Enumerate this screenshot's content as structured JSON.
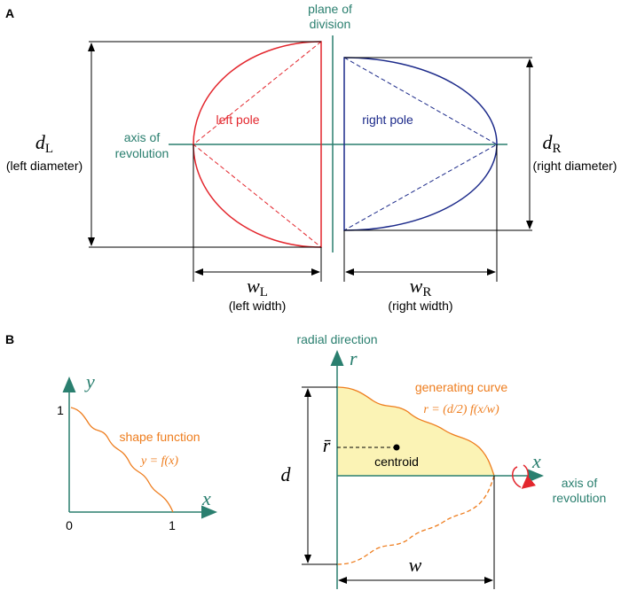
{
  "panel_a": {
    "label": "A",
    "plane_of_division": [
      "plane of",
      "division"
    ],
    "left_pole": "left pole",
    "right_pole": "right pole",
    "axis_of_revolution": [
      "axis of",
      "revolution"
    ],
    "left_diameter": {
      "symbol": "d",
      "subscript": "L",
      "caption": "(left diameter)"
    },
    "right_diameter": {
      "symbol": "d",
      "subscript": "R",
      "caption": "(right diameter)"
    },
    "left_width": {
      "symbol": "w",
      "subscript": "L",
      "caption": "(left width)"
    },
    "right_width": {
      "symbol": "w",
      "subscript": "R",
      "caption": "(right width)"
    }
  },
  "panel_b": {
    "label": "B",
    "shape_plot": {
      "y_axis": "y",
      "x_axis": "x",
      "y_one": "1",
      "x_zero": "0",
      "x_one": "1",
      "title": "shape function",
      "formula": "y = f(x)"
    },
    "profile": {
      "radial_direction": "radial direction",
      "r_axis": "r",
      "x_axis": "x",
      "axis_of_revolution": [
        "axis of",
        "revolution"
      ],
      "generating_curve": "generating curve",
      "formula": "r = (d/2) f(x/w)",
      "r_bar": "r̄",
      "centroid": "centroid",
      "diameter": "d",
      "width": "w"
    }
  }
}
